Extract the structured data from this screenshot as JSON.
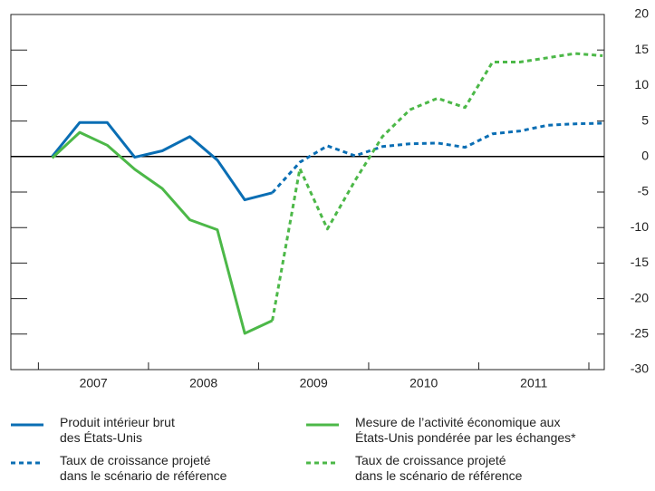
{
  "chart_data": {
    "type": "line",
    "x": [
      2007.125,
      2007.375,
      2007.625,
      2007.875,
      2008.125,
      2008.375,
      2008.625,
      2008.875,
      2009.125,
      2009.375,
      2009.625,
      2009.875,
      2010.125,
      2010.375,
      2010.625,
      2010.875,
      2011.125,
      2011.375,
      2011.625,
      2011.875,
      2012.125
    ],
    "xlim": [
      2006.75,
      2012.14
    ],
    "xticks": [
      {
        "value": 2007.5,
        "label": "2007"
      },
      {
        "value": 2008.5,
        "label": "2008"
      },
      {
        "value": 2009.5,
        "label": "2009"
      },
      {
        "value": 2010.5,
        "label": "2010"
      },
      {
        "value": 2011.5,
        "label": "2011"
      }
    ],
    "ylim": [
      -30,
      20
    ],
    "yticks": [
      -30,
      -25,
      -20,
      -15,
      -10,
      -5,
      0,
      5,
      10,
      15,
      20
    ],
    "series": [
      {
        "name": "Produit intérieur brut\ndes États-Unis",
        "color": "#0a6eb4",
        "dashed": false,
        "values": [
          0,
          4.8,
          4.8,
          -0.1,
          0.8,
          2.8,
          -0.5,
          -6.1,
          -5.1,
          null,
          null,
          null,
          null,
          null,
          null,
          null,
          null,
          null,
          null,
          null,
          null
        ]
      },
      {
        "name": "Taux de croissance projeté\ndans le scénario de référence",
        "color": "#0a6eb4",
        "dashed": true,
        "values": [
          null,
          null,
          null,
          null,
          null,
          null,
          null,
          null,
          -5.1,
          -0.8,
          1.5,
          0.1,
          1.4,
          1.8,
          1.9,
          1.3,
          3.2,
          3.6,
          4.4,
          4.6,
          4.7
        ]
      },
      {
        "name": "Mesure de l’activité économique aux\nÉtats-Unis pondérée par les échanges*",
        "color": "#4cb848",
        "dashed": false,
        "values": [
          -0.2,
          3.4,
          1.6,
          -1.8,
          -4.5,
          -8.9,
          -10.3,
          -24.9,
          -23.1,
          null,
          null,
          null,
          null,
          null,
          null,
          null,
          null,
          null,
          null,
          null,
          null
        ]
      },
      {
        "name": "Taux de croissance projeté\ndans le scénario de référence",
        "color": "#4cb848",
        "dashed": true,
        "values": [
          null,
          null,
          null,
          null,
          null,
          null,
          null,
          null,
          -23.1,
          -1.7,
          -10.2,
          -3.4,
          2.8,
          6.6,
          8.2,
          6.9,
          13.3,
          13.3,
          13.9,
          14.5,
          14.2
        ]
      }
    ]
  }
}
